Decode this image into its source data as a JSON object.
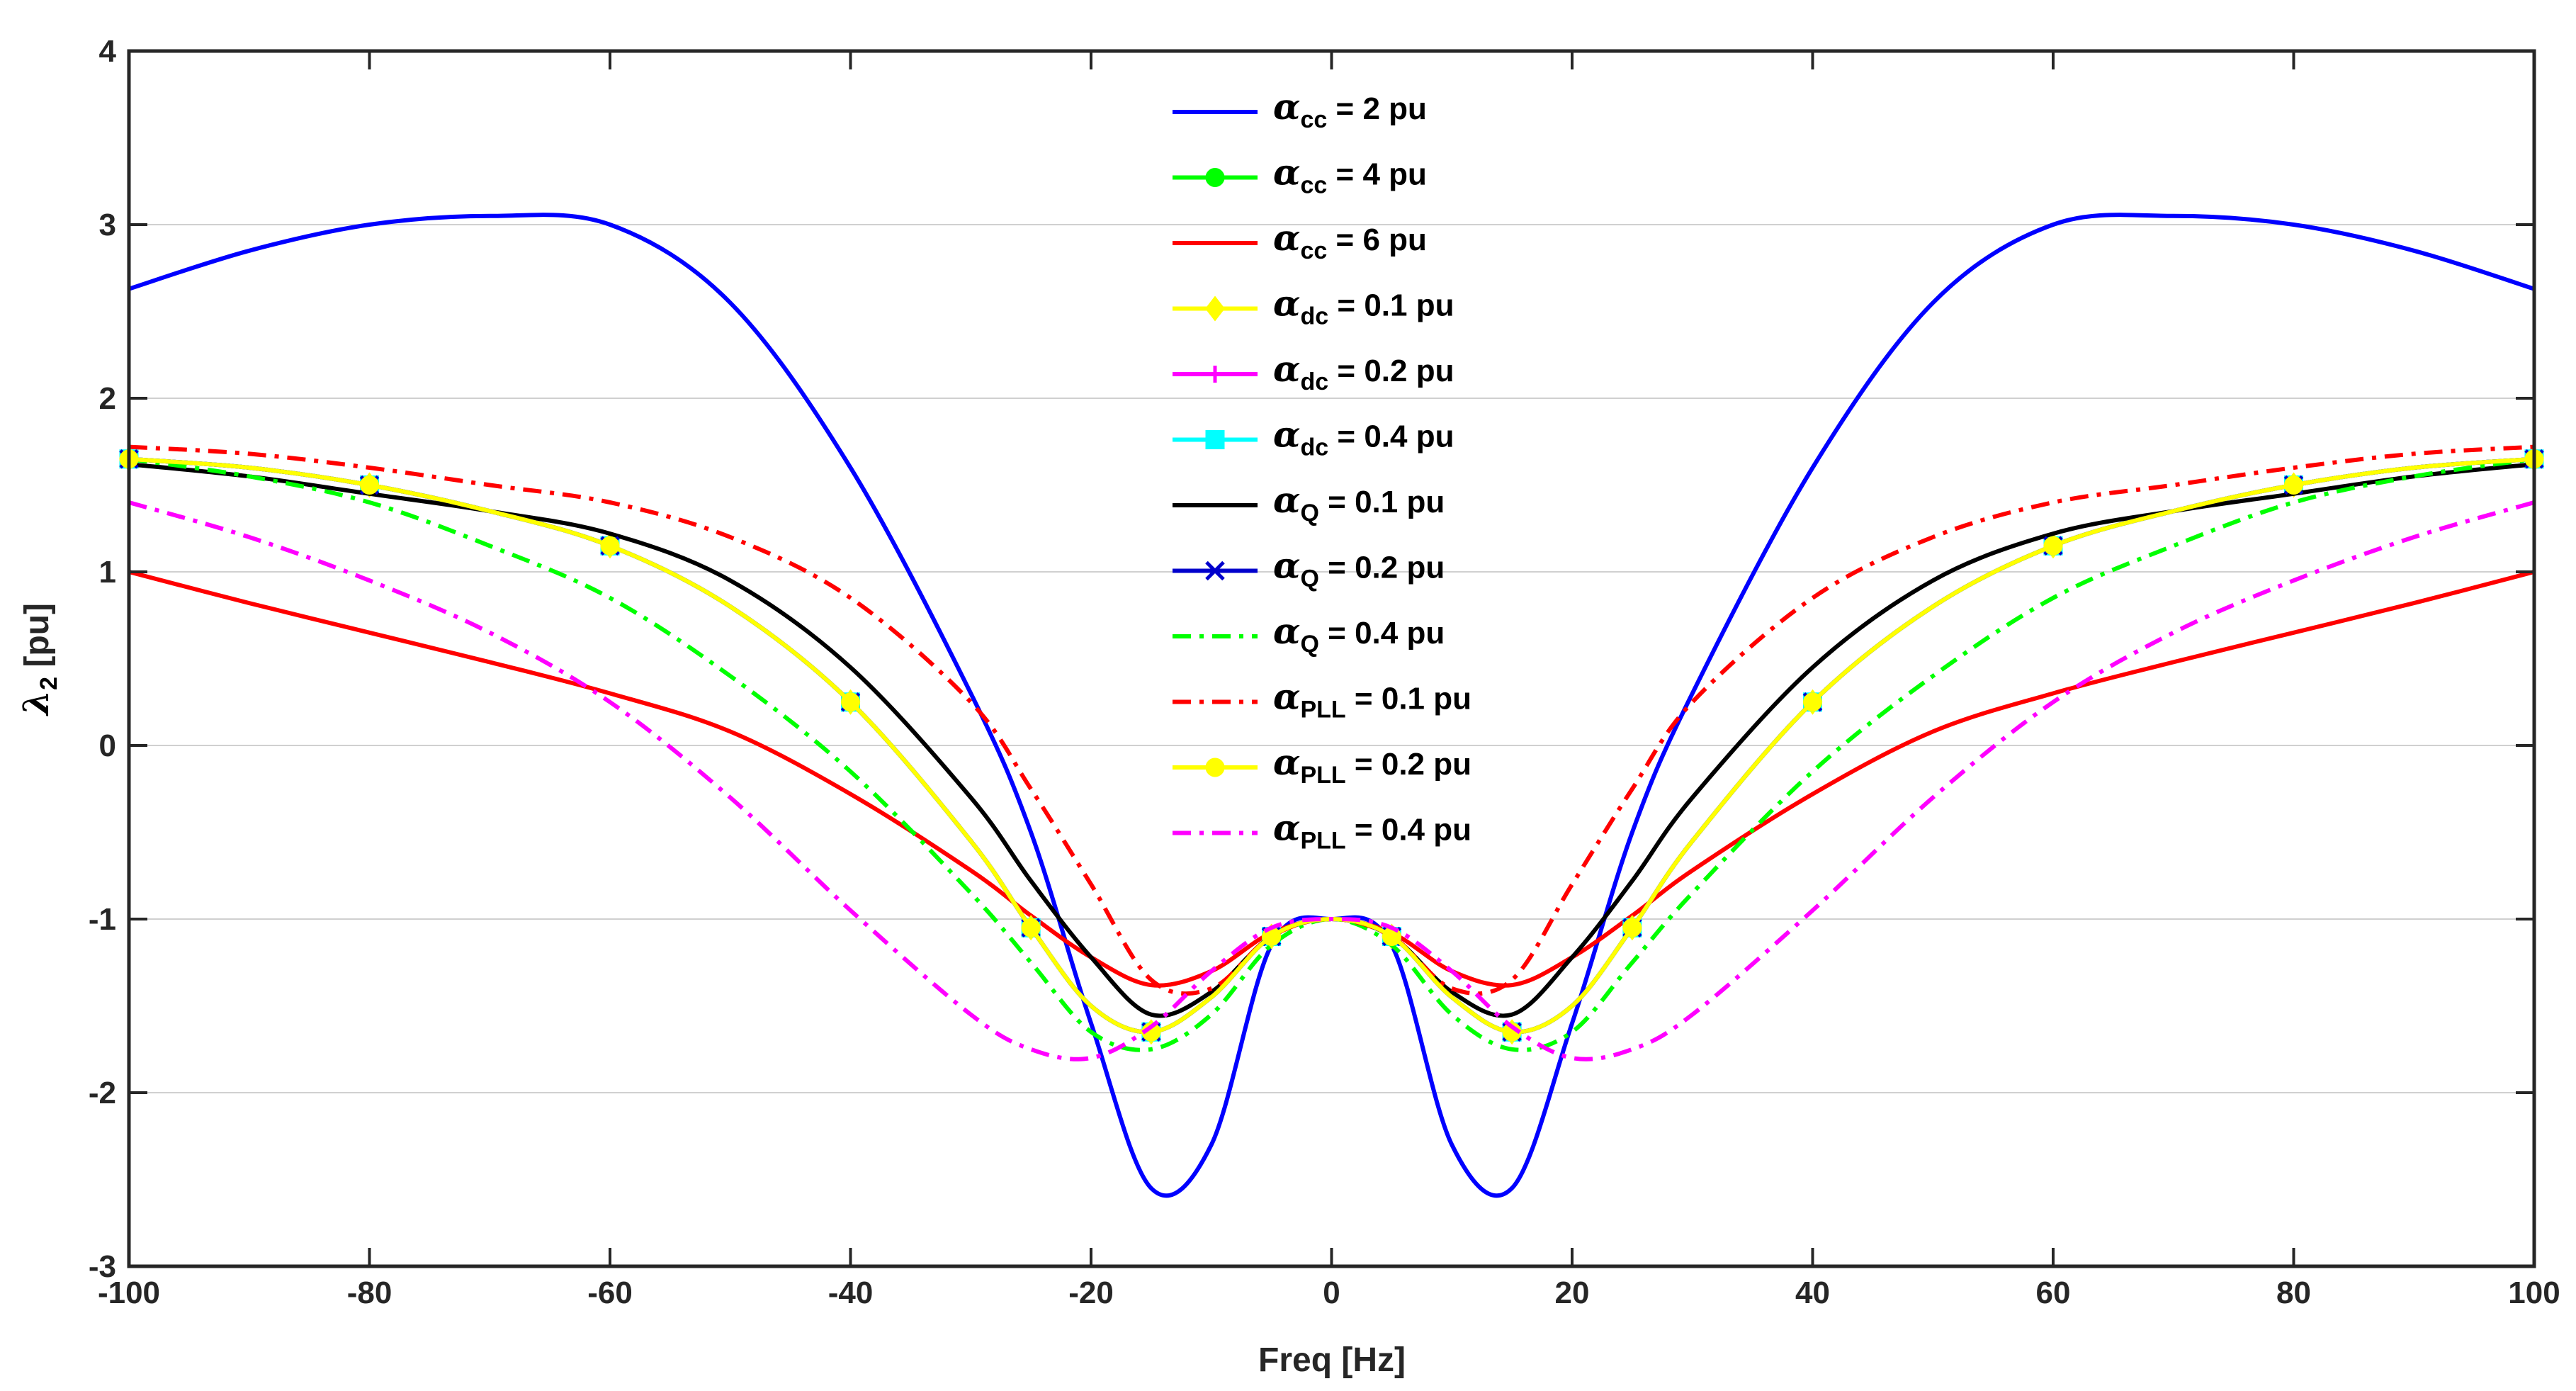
{
  "chart_data": {
    "type": "line",
    "xlabel": "Freq [Hz]",
    "ylabel_symbol": "λ",
    "ylabel_sub": "2",
    "ylabel_unit": " [pu]",
    "xlim": [
      -100,
      100
    ],
    "ylim": [
      -3,
      4
    ],
    "xticks": [
      -100,
      -80,
      -60,
      -40,
      -20,
      0,
      20,
      40,
      60,
      80,
      100
    ],
    "yticks": [
      -3,
      -2,
      -1,
      0,
      1,
      2,
      3,
      4
    ],
    "xtick_labels": [
      "-100",
      "-80",
      "-60",
      "-40",
      "-20",
      "0",
      "20",
      "40",
      "60",
      "80",
      "100"
    ],
    "ytick_labels": [
      "-3",
      "-2",
      "-1",
      "0",
      "1",
      "2",
      "3",
      "4"
    ],
    "legend_position": "top-center",
    "colors": {
      "blue": "#0000ff",
      "green": "#00ff00",
      "red": "#ff0000",
      "yellow": "#ffff00",
      "magenta": "#ff00ff",
      "cyan": "#00ffff",
      "black": "#000000",
      "darkblue": "#0000cc"
    },
    "x": [
      -100,
      -90,
      -80,
      -70,
      -60,
      -50,
      -40,
      -30,
      -25,
      -20,
      -15,
      -10,
      -5,
      0,
      5,
      10,
      15,
      20,
      25,
      30,
      40,
      50,
      60,
      70,
      80,
      90,
      100
    ],
    "series": [
      {
        "name": "αcc = 2 pu",
        "sym": "α",
        "sub": "cc",
        "val": " = 2 pu",
        "color": "#0000ff",
        "dash": "solid",
        "marker": "none",
        "values": [
          2.63,
          2.85,
          3.0,
          3.05,
          3.0,
          2.55,
          1.6,
          0.3,
          -0.5,
          -1.6,
          -2.55,
          -2.3,
          -1.15,
          -1.0,
          -1.15,
          -2.3,
          -2.55,
          -1.6,
          -0.5,
          0.3,
          1.6,
          2.55,
          3.0,
          3.05,
          3.0,
          2.85,
          2.63
        ]
      },
      {
        "name": "αcc = 4 pu",
        "sym": "α",
        "sub": "cc",
        "val": " = 4 pu",
        "color": "#00ff00",
        "dash": "solid",
        "marker": "circle",
        "values": [
          1.65,
          1.6,
          1.5,
          1.35,
          1.15,
          0.8,
          0.25,
          -0.55,
          -1.05,
          -1.5,
          -1.65,
          -1.45,
          -1.1,
          -1.0,
          -1.1,
          -1.45,
          -1.65,
          -1.5,
          -1.05,
          -0.55,
          0.25,
          0.8,
          1.15,
          1.35,
          1.5,
          1.6,
          1.65
        ]
      },
      {
        "name": "αcc = 6 pu",
        "sym": "α",
        "sub": "cc",
        "val": " = 6 pu",
        "color": "#ff0000",
        "dash": "solid",
        "marker": "none",
        "values": [
          1.0,
          0.82,
          0.65,
          0.48,
          0.3,
          0.08,
          -0.28,
          -0.72,
          -0.98,
          -1.22,
          -1.38,
          -1.3,
          -1.08,
          -1.0,
          -1.08,
          -1.3,
          -1.38,
          -1.22,
          -0.98,
          -0.72,
          -0.28,
          0.08,
          0.3,
          0.48,
          0.65,
          0.82,
          1.0
        ]
      },
      {
        "name": "αdc = 0.1 pu",
        "sym": "α",
        "sub": "dc",
        "val": " = 0.1 pu",
        "color": "#ffff00",
        "dash": "solid",
        "marker": "diamond",
        "values": [
          1.65,
          1.6,
          1.5,
          1.35,
          1.15,
          0.8,
          0.25,
          -0.55,
          -1.05,
          -1.5,
          -1.65,
          -1.45,
          -1.1,
          -1.0,
          -1.1,
          -1.45,
          -1.65,
          -1.5,
          -1.05,
          -0.55,
          0.25,
          0.8,
          1.15,
          1.35,
          1.5,
          1.6,
          1.65
        ]
      },
      {
        "name": "αdc = 0.2 pu",
        "sym": "α",
        "sub": "dc",
        "val": " = 0.2 pu",
        "color": "#ff00ff",
        "dash": "solid",
        "marker": "plus",
        "values": [
          1.65,
          1.6,
          1.5,
          1.35,
          1.15,
          0.8,
          0.25,
          -0.55,
          -1.05,
          -1.5,
          -1.65,
          -1.45,
          -1.1,
          -1.0,
          -1.1,
          -1.45,
          -1.65,
          -1.5,
          -1.05,
          -0.55,
          0.25,
          0.8,
          1.15,
          1.35,
          1.5,
          1.6,
          1.65
        ]
      },
      {
        "name": "αdc = 0.4 pu",
        "sym": "α",
        "sub": "dc",
        "val": " = 0.4 pu",
        "color": "#00ffff",
        "dash": "solid",
        "marker": "square",
        "values": [
          1.65,
          1.6,
          1.5,
          1.35,
          1.15,
          0.8,
          0.25,
          -0.55,
          -1.05,
          -1.5,
          -1.65,
          -1.45,
          -1.1,
          -1.0,
          -1.1,
          -1.45,
          -1.65,
          -1.5,
          -1.05,
          -0.55,
          0.25,
          0.8,
          1.15,
          1.35,
          1.5,
          1.6,
          1.65
        ]
      },
      {
        "name": "αQ = 0.1 pu",
        "sym": "α",
        "sub": "Q",
        "val": " = 0.1 pu",
        "color": "#000000",
        "dash": "solid",
        "marker": "none",
        "values": [
          1.62,
          1.55,
          1.45,
          1.35,
          1.22,
          0.95,
          0.45,
          -0.3,
          -0.78,
          -1.22,
          -1.55,
          -1.42,
          -1.1,
          -1.0,
          -1.1,
          -1.42,
          -1.55,
          -1.22,
          -0.78,
          -0.3,
          0.45,
          0.95,
          1.22,
          1.35,
          1.45,
          1.55,
          1.62
        ]
      },
      {
        "name": "αQ = 0.2 pu",
        "sym": "α",
        "sub": "Q",
        "val": " = 0.2 pu",
        "color": "#0000cc",
        "dash": "solid",
        "marker": "x",
        "values": [
          1.65,
          1.6,
          1.5,
          1.35,
          1.15,
          0.8,
          0.25,
          -0.55,
          -1.05,
          -1.5,
          -1.65,
          -1.45,
          -1.1,
          -1.0,
          -1.1,
          -1.45,
          -1.65,
          -1.5,
          -1.05,
          -0.55,
          0.25,
          0.8,
          1.15,
          1.35,
          1.5,
          1.6,
          1.65
        ]
      },
      {
        "name": "αQ = 0.4 pu",
        "sym": "α",
        "sub": "Q",
        "val": " = 0.4 pu",
        "color": "#00ff00",
        "dash": "dashdot",
        "marker": "none",
        "values": [
          1.65,
          1.55,
          1.4,
          1.15,
          0.85,
          0.4,
          -0.15,
          -0.85,
          -1.25,
          -1.65,
          -1.75,
          -1.55,
          -1.15,
          -1.0,
          -1.15,
          -1.55,
          -1.75,
          -1.65,
          -1.25,
          -0.85,
          -0.15,
          0.4,
          0.85,
          1.15,
          1.4,
          1.55,
          1.65
        ]
      },
      {
        "name": "αPLL = 0.1 pu",
        "sym": "α",
        "sub": "PLL",
        "val": " = 0.1 pu",
        "color": "#ff0000",
        "dash": "dashdot",
        "marker": "none",
        "values": [
          1.72,
          1.68,
          1.6,
          1.5,
          1.4,
          1.2,
          0.85,
          0.25,
          -0.25,
          -0.8,
          -1.35,
          -1.4,
          -1.1,
          -1.0,
          -1.1,
          -1.4,
          -1.35,
          -0.8,
          -0.25,
          0.25,
          0.85,
          1.2,
          1.4,
          1.5,
          1.6,
          1.68,
          1.72
        ]
      },
      {
        "name": "αPLL = 0.2 pu",
        "sym": "α",
        "sub": "PLL",
        "val": " = 0.2 pu",
        "color": "#ffff00",
        "dash": "solid",
        "marker": "circle",
        "values": [
          1.65,
          1.6,
          1.5,
          1.35,
          1.15,
          0.8,
          0.25,
          -0.55,
          -1.05,
          -1.5,
          -1.65,
          -1.45,
          -1.1,
          -1.0,
          -1.1,
          -1.45,
          -1.65,
          -1.5,
          -1.05,
          -0.55,
          0.25,
          0.8,
          1.15,
          1.35,
          1.5,
          1.6,
          1.65
        ]
      },
      {
        "name": "αPLL = 0.4 pu",
        "sym": "α",
        "sub": "PLL",
        "val": " = 0.4 pu",
        "color": "#ff00ff",
        "dash": "dashdot",
        "marker": "none",
        "values": [
          1.4,
          1.2,
          0.95,
          0.65,
          0.25,
          -0.3,
          -0.95,
          -1.55,
          -1.75,
          -1.8,
          -1.62,
          -1.3,
          -1.05,
          -1.0,
          -1.05,
          -1.3,
          -1.62,
          -1.8,
          -1.75,
          -1.55,
          -0.95,
          -0.3,
          0.25,
          0.65,
          0.95,
          1.2,
          1.4
        ]
      }
    ]
  }
}
